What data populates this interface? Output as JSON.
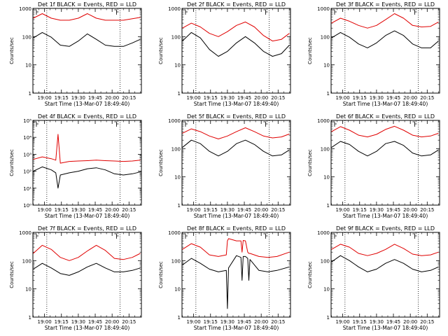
{
  "figure": {
    "title_template": "Det {det} BLACK = Events, RED = LLD",
    "xlabel": "Start Time (13-Mar-07 18:49:40)",
    "ylabel": "Counts/sec",
    "x_ticks": [
      "19:00",
      "19:15",
      "19:30",
      "19:45",
      "20:00",
      "20:15"
    ]
  },
  "colors": {
    "events": "#000000",
    "lld": "#e00000",
    "axes": "#000000",
    "background": "#ffffff"
  },
  "chart_data": [
    {
      "type": "line",
      "det": "1f",
      "title": "Det 1f BLACK = Events, RED = LLD",
      "xlabel": "Start Time (13-Mar-07 18:49:40)",
      "ylabel": "Counts/sec",
      "xlim": [
        "18:49:40",
        "20:26:00"
      ],
      "ylim": [
        1,
        1000
      ],
      "yscale": "log",
      "y_ticks": [
        "1",
        "10",
        "100",
        "1000"
      ],
      "x": [
        "18:50",
        "18:58",
        "19:06",
        "19:14",
        "19:22",
        "19:30",
        "19:38",
        "19:46",
        "19:54",
        "20:02",
        "20:10",
        "20:18",
        "20:25"
      ],
      "series": [
        {
          "name": "Events",
          "color": "#000000",
          "values": [
            90,
            140,
            95,
            50,
            45,
            70,
            125,
            80,
            50,
            45,
            45,
            60,
            80
          ]
        },
        {
          "name": "LLD",
          "color": "#e00000",
          "values": [
            450,
            650,
            450,
            380,
            380,
            450,
            650,
            450,
            380,
            380,
            380,
            430,
            480
          ]
        }
      ]
    },
    {
      "type": "line",
      "det": "2f",
      "title": "Det 2f BLACK = Events, RED = LLD",
      "xlabel": "Start Time (13-Mar-07 18:49:40)",
      "ylabel": "Counts/sec",
      "xlim": [
        "18:49:40",
        "20:26:00"
      ],
      "ylim": [
        1,
        1000
      ],
      "yscale": "log",
      "y_ticks": [
        "1",
        "10",
        "100",
        "1000"
      ],
      "x": [
        "18:50",
        "18:58",
        "19:06",
        "19:14",
        "19:22",
        "19:30",
        "19:38",
        "19:46",
        "19:54",
        "20:02",
        "20:10",
        "20:18",
        "20:25"
      ],
      "series": [
        {
          "name": "Events",
          "color": "#000000",
          "values": [
            70,
            140,
            90,
            35,
            20,
            30,
            60,
            100,
            60,
            30,
            20,
            25,
            50
          ]
        },
        {
          "name": "LLD",
          "color": "#e00000",
          "values": [
            200,
            300,
            220,
            130,
            100,
            150,
            250,
            330,
            220,
            110,
            70,
            80,
            130
          ]
        }
      ]
    },
    {
      "type": "line",
      "det": "3f",
      "title": "Det 3f BLACK = Events, RED = LLD",
      "xlabel": "Start Time (13-Mar-07 18:49:40)",
      "ylabel": "Counts/sec",
      "xlim": [
        "18:49:40",
        "20:26:00"
      ],
      "ylim": [
        1,
        1000
      ],
      "yscale": "log",
      "y_ticks": [
        "1",
        "10",
        "100",
        "1000"
      ],
      "x": [
        "18:50",
        "18:58",
        "19:06",
        "19:14",
        "19:22",
        "19:30",
        "19:38",
        "19:46",
        "19:54",
        "20:02",
        "20:10",
        "20:18",
        "20:25"
      ],
      "series": [
        {
          "name": "Events",
          "color": "#000000",
          "values": [
            90,
            140,
            95,
            55,
            40,
            60,
            110,
            160,
            110,
            55,
            40,
            40,
            70
          ]
        },
        {
          "name": "LLD",
          "color": "#e00000",
          "values": [
            300,
            450,
            350,
            250,
            200,
            250,
            400,
            650,
            450,
            250,
            220,
            230,
            330
          ]
        }
      ]
    },
    {
      "type": "line",
      "det": "4f",
      "title": "Det 4f BLACK = Events, RED = LLD",
      "xlabel": "Start Time (13-Mar-07 18:49:40)",
      "ylabel": "Counts/sec",
      "xlim": [
        "18:49:40",
        "20:26:00"
      ],
      "ylim": [
        1,
        100000
      ],
      "yscale": "log",
      "y_ticks": [
        "10⁰",
        "10¹",
        "10²",
        "10³",
        "10⁴",
        "10⁵"
      ],
      "x": [
        "18:50",
        "18:58",
        "19:06",
        "19:10",
        "19:12",
        "19:14",
        "19:22",
        "19:30",
        "19:38",
        "19:46",
        "19:54",
        "20:02",
        "20:10",
        "20:18",
        "20:25"
      ],
      "series": [
        {
          "name": "Events",
          "color": "#000000",
          "values": [
            100,
            180,
            120,
            80,
            10,
            60,
            80,
            100,
            140,
            160,
            120,
            70,
            60,
            70,
            90
          ]
        },
        {
          "name": "LLD",
          "color": "#e00000",
          "values": [
            500,
            700,
            550,
            450,
            15000,
            300,
            380,
            400,
            420,
            450,
            420,
            400,
            380,
            400,
            450
          ]
        }
      ]
    },
    {
      "type": "line",
      "det": "5f",
      "title": "Det 5f BLACK = Events, RED = LLD",
      "xlabel": "Start Time (13-Mar-07 18:49:40)",
      "ylabel": "Counts/sec",
      "xlim": [
        "18:49:40",
        "20:26:00"
      ],
      "ylim": [
        1,
        1000
      ],
      "yscale": "log",
      "y_ticks": [
        "1",
        "10",
        "100",
        "1000"
      ],
      "x": [
        "18:50",
        "18:58",
        "19:06",
        "19:14",
        "19:22",
        "19:30",
        "19:38",
        "19:46",
        "19:54",
        "20:02",
        "20:10",
        "20:18",
        "20:25"
      ],
      "series": [
        {
          "name": "Events",
          "color": "#000000",
          "values": [
            110,
            200,
            150,
            80,
            55,
            80,
            150,
            200,
            140,
            80,
            55,
            60,
            90
          ]
        },
        {
          "name": "LLD",
          "color": "#e00000",
          "values": [
            350,
            500,
            400,
            280,
            220,
            280,
            400,
            550,
            400,
            280,
            240,
            260,
            330
          ]
        }
      ]
    },
    {
      "type": "line",
      "det": "6f",
      "title": "Det 6f BLACK = Events, RED = LLD",
      "xlabel": "Start Time (13-Mar-07 18:49:40)",
      "ylabel": "Counts/sec",
      "xlim": [
        "18:49:40",
        "20:26:00"
      ],
      "ylim": [
        1,
        1000
      ],
      "yscale": "log",
      "y_ticks": [
        "1",
        "10",
        "100",
        "1000"
      ],
      "x": [
        "18:50",
        "18:58",
        "19:06",
        "19:14",
        "19:22",
        "19:30",
        "19:38",
        "19:46",
        "19:54",
        "20:02",
        "20:10",
        "20:18",
        "20:25"
      ],
      "series": [
        {
          "name": "Events",
          "color": "#000000",
          "values": [
            110,
            180,
            140,
            80,
            55,
            80,
            150,
            180,
            130,
            70,
            55,
            60,
            90
          ]
        },
        {
          "name": "LLD",
          "color": "#e00000",
          "values": [
            400,
            600,
            450,
            300,
            260,
            320,
            480,
            620,
            450,
            300,
            260,
            280,
            350
          ]
        }
      ]
    },
    {
      "type": "line",
      "det": "7f",
      "title": "Det 7f BLACK = Events, RED = LLD",
      "xlabel": "Start Time (13-Mar-07 18:49:40)",
      "ylabel": "Counts/sec",
      "xlim": [
        "18:49:40",
        "20:26:00"
      ],
      "ylim": [
        1,
        1000
      ],
      "yscale": "log",
      "y_ticks": [
        "1",
        "10",
        "100",
        "1000"
      ],
      "x": [
        "18:50",
        "18:58",
        "19:06",
        "19:14",
        "19:22",
        "19:30",
        "19:38",
        "19:46",
        "19:54",
        "20:02",
        "20:10",
        "20:18",
        "20:25"
      ],
      "series": [
        {
          "name": "Events",
          "color": "#000000",
          "values": [
            50,
            80,
            55,
            35,
            30,
            40,
            60,
            80,
            55,
            40,
            40,
            45,
            55
          ]
        },
        {
          "name": "LLD",
          "color": "#e00000",
          "values": [
            180,
            350,
            250,
            130,
            100,
            130,
            220,
            350,
            230,
            120,
            110,
            130,
            180
          ]
        }
      ]
    },
    {
      "type": "line",
      "det": "8f",
      "title": "Det 8f BLACK = Events, RED = LLD",
      "xlabel": "Start Time (13-Mar-07 18:49:40)",
      "ylabel": "Counts/sec",
      "xlim": [
        "18:49:40",
        "20:26:00"
      ],
      "ylim": [
        1,
        1000
      ],
      "yscale": "log",
      "y_ticks": [
        "1",
        "10",
        "100",
        "1000"
      ],
      "x": [
        "18:50",
        "18:58",
        "19:06",
        "19:14",
        "19:22",
        "19:29",
        "19:30",
        "19:31",
        "19:38",
        "19:42",
        "19:43",
        "19:44",
        "19:46",
        "19:48",
        "19:49",
        "19:50",
        "19:58",
        "20:06",
        "20:14",
        "20:25"
      ],
      "series": [
        {
          "name": "Events",
          "color": "#000000",
          "values": [
            70,
            120,
            80,
            50,
            40,
            45,
            2,
            55,
            150,
            130,
            20,
            140,
            140,
            120,
            20,
            110,
            45,
            40,
            45,
            60
          ]
        },
        {
          "name": "LLD",
          "color": "#e00000",
          "values": [
            250,
            400,
            300,
            160,
            140,
            160,
            500,
            600,
            500,
            500,
            200,
            520,
            500,
            200,
            180,
            180,
            140,
            130,
            140,
            200
          ]
        }
      ]
    },
    {
      "type": "line",
      "det": "9f",
      "title": "Det 9f BLACK = Events, RED = LLD",
      "xlabel": "Start Time (13-Mar-07 18:49:40)",
      "ylabel": "Counts/sec",
      "xlim": [
        "18:49:40",
        "20:26:00"
      ],
      "ylim": [
        1,
        1000
      ],
      "yscale": "log",
      "y_ticks": [
        "1",
        "10",
        "100",
        "1000"
      ],
      "x": [
        "18:50",
        "18:58",
        "19:06",
        "19:14",
        "19:22",
        "19:30",
        "19:38",
        "19:46",
        "19:54",
        "20:02",
        "20:10",
        "20:18",
        "20:25"
      ],
      "series": [
        {
          "name": "Events",
          "color": "#000000",
          "values": [
            90,
            150,
            100,
            60,
            40,
            50,
            80,
            110,
            80,
            50,
            40,
            45,
            60
          ]
        },
        {
          "name": "LLD",
          "color": "#e00000",
          "values": [
            250,
            380,
            300,
            180,
            150,
            180,
            250,
            380,
            270,
            170,
            150,
            160,
            200
          ]
        }
      ]
    }
  ]
}
